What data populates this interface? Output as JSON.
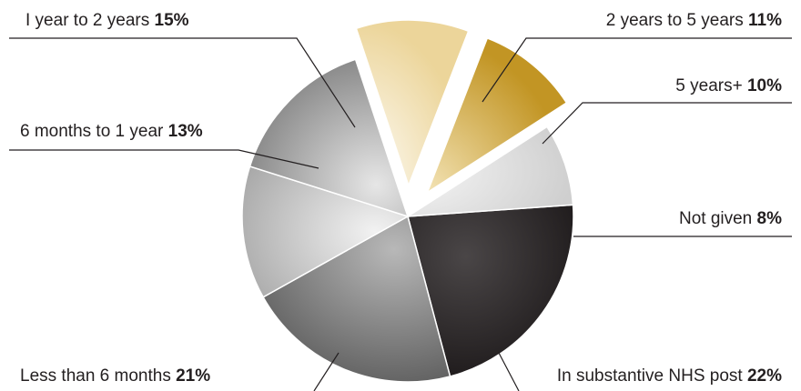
{
  "chart_data": {
    "type": "pie",
    "title": "",
    "categories": [
      "In substantive NHS post",
      "Less than 6 months",
      "6 months to 1 year",
      "I year to 2 years",
      "2 years to 5 years",
      "5 years+",
      "Not given"
    ],
    "values": [
      22,
      21,
      13,
      15,
      11,
      10,
      8
    ],
    "value_labels": [
      "22%",
      "21%",
      "13%",
      "15%",
      "11%",
      "10%",
      "8%"
    ],
    "exploded": [
      false,
      false,
      false,
      false,
      true,
      true,
      false
    ],
    "colors": [
      "#231f20",
      "#7a7a7a",
      "#c8c8c8",
      "#9e9e9e",
      "#f0dca8",
      "#c9a13a",
      "#d9d9d9"
    ],
    "legend": "none"
  }
}
